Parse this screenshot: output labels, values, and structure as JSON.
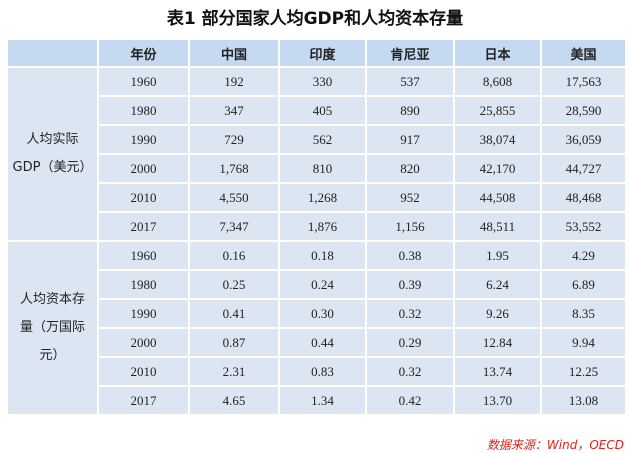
{
  "title": "表1  部分国家人均GDP和人均资本存量",
  "table": {
    "header": [
      "年份",
      "中国",
      "印度",
      "肯尼亚",
      "日本",
      "美国"
    ],
    "groups": [
      {
        "label": [
          "人均实际",
          "GDP（美元）"
        ],
        "rows": [
          [
            "1960",
            "192",
            "330",
            "537",
            "8,608",
            "17,563"
          ],
          [
            "1980",
            "347",
            "405",
            "890",
            "25,855",
            "28,590"
          ],
          [
            "1990",
            "729",
            "562",
            "917",
            "38,074",
            "36,059"
          ],
          [
            "2000",
            "1,768",
            "810",
            "820",
            "42,170",
            "44,727"
          ],
          [
            "2010",
            "4,550",
            "1,268",
            "952",
            "44,508",
            "48,468"
          ],
          [
            "2017",
            "7,347",
            "1,876",
            "1,156",
            "48,511",
            "53,552"
          ]
        ]
      },
      {
        "label": [
          "人均资本存",
          "量（万国际",
          "元）"
        ],
        "rows": [
          [
            "1960",
            "0.16",
            "0.18",
            "0.38",
            "1.95",
            "4.29"
          ],
          [
            "1980",
            "0.25",
            "0.24",
            "0.39",
            "6.24",
            "6.89"
          ],
          [
            "1990",
            "0.41",
            "0.30",
            "0.32",
            "9.26",
            "8.35"
          ],
          [
            "2000",
            "0.87",
            "0.44",
            "0.29",
            "12.84",
            "9.94"
          ],
          [
            "2010",
            "2.31",
            "0.83",
            "0.32",
            "13.74",
            "12.25"
          ],
          [
            "2017",
            "4.65",
            "1.34",
            "0.42",
            "13.70",
            "13.08"
          ]
        ]
      }
    ]
  },
  "source": "数据来源：Wind，OECD"
}
